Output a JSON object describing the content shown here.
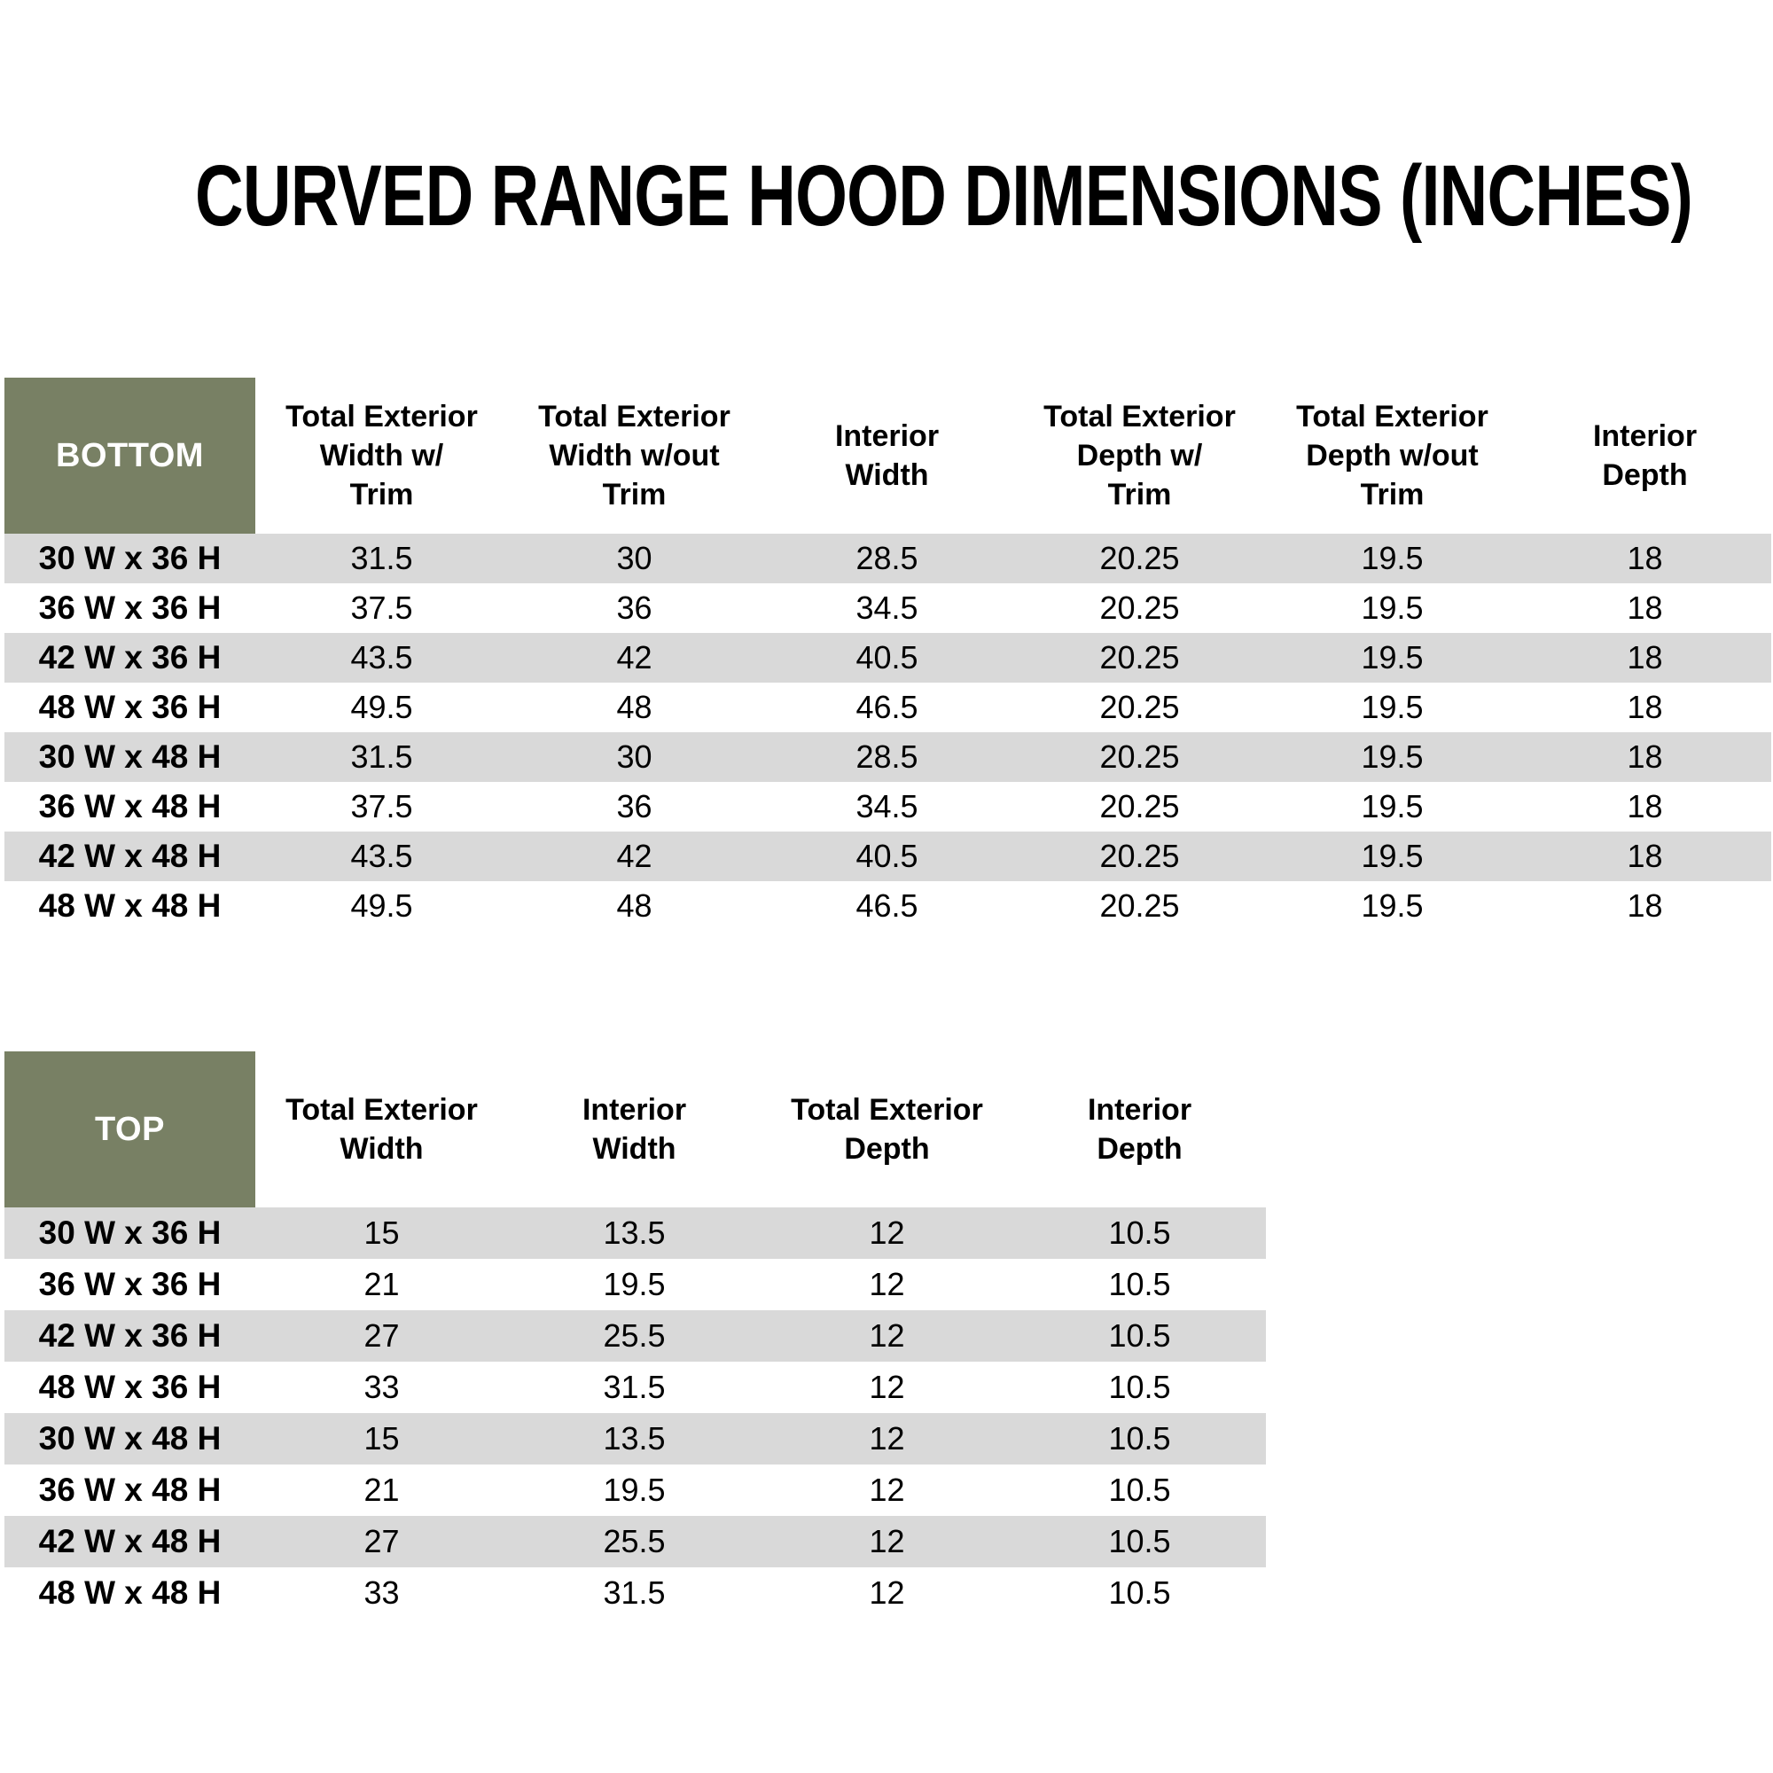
{
  "title": "CURVED RANGE HOOD DIMENSIONS (INCHES)",
  "colors": {
    "header_green": "#788064",
    "stripe_gray": "#D9D9D9",
    "text": "#000000",
    "header_text_white": "#FFFFFF"
  },
  "bottom_table": {
    "corner_label": "BOTTOM",
    "columns": [
      "Total Exterior\nWidth w/\nTrim",
      "Total Exterior\nWidth w/out\nTrim",
      "Interior\nWidth",
      "Total Exterior\nDepth w/\nTrim",
      "Total Exterior\nDepth w/out\nTrim",
      "Interior\nDepth"
    ],
    "rows": [
      {
        "size": "30 W x 36 H",
        "values": [
          "31.5",
          "30",
          "28.5",
          "20.25",
          "19.5",
          "18"
        ]
      },
      {
        "size": "36 W x 36 H",
        "values": [
          "37.5",
          "36",
          "34.5",
          "20.25",
          "19.5",
          "18"
        ]
      },
      {
        "size": "42 W x 36 H",
        "values": [
          "43.5",
          "42",
          "40.5",
          "20.25",
          "19.5",
          "18"
        ]
      },
      {
        "size": "48 W x 36 H",
        "values": [
          "49.5",
          "48",
          "46.5",
          "20.25",
          "19.5",
          "18"
        ]
      },
      {
        "size": "30 W x 48 H",
        "values": [
          "31.5",
          "30",
          "28.5",
          "20.25",
          "19.5",
          "18"
        ]
      },
      {
        "size": "36 W x 48 H",
        "values": [
          "37.5",
          "36",
          "34.5",
          "20.25",
          "19.5",
          "18"
        ]
      },
      {
        "size": "42 W x 48 H",
        "values": [
          "43.5",
          "42",
          "40.5",
          "20.25",
          "19.5",
          "18"
        ]
      },
      {
        "size": "48 W x 48 H",
        "values": [
          "49.5",
          "48",
          "46.5",
          "20.25",
          "19.5",
          "18"
        ]
      }
    ]
  },
  "top_table": {
    "corner_label": "TOP",
    "columns": [
      "Total Exterior\nWidth",
      "Interior\nWidth",
      "Total Exterior\nDepth",
      "Interior\nDepth"
    ],
    "rows": [
      {
        "size": "30 W x 36 H",
        "values": [
          "15",
          "13.5",
          "12",
          "10.5"
        ]
      },
      {
        "size": "36 W x 36 H",
        "values": [
          "21",
          "19.5",
          "12",
          "10.5"
        ]
      },
      {
        "size": "42 W x 36 H",
        "values": [
          "27",
          "25.5",
          "12",
          "10.5"
        ]
      },
      {
        "size": "48 W x 36 H",
        "values": [
          "33",
          "31.5",
          "12",
          "10.5"
        ]
      },
      {
        "size": "30 W x 48 H",
        "values": [
          "15",
          "13.5",
          "12",
          "10.5"
        ]
      },
      {
        "size": "36 W x 48 H",
        "values": [
          "21",
          "19.5",
          "12",
          "10.5"
        ]
      },
      {
        "size": "42 W x 48 H",
        "values": [
          "27",
          "25.5",
          "12",
          "10.5"
        ]
      },
      {
        "size": "48 W x 48 H",
        "values": [
          "33",
          "31.5",
          "12",
          "10.5"
        ]
      }
    ]
  }
}
